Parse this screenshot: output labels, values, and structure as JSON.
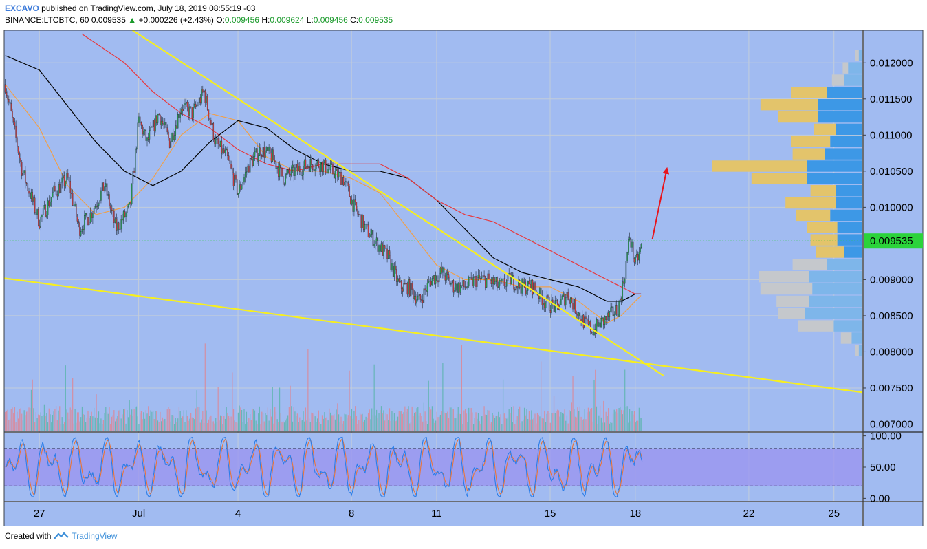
{
  "header": {
    "author": "EXCAVO",
    "published_text": "published on TradingView.com, July 18, 2019 08:55:19 -03",
    "symbol": "BINANCE:LTCBTC, 60",
    "last": "0.009535",
    "change_arrow": "▲",
    "change": "+0.000226 (+2.43%)",
    "o_label": "O:",
    "o_value": "0.009456",
    "h_label": "H:",
    "h_value": "0.009624",
    "l_label": "L:",
    "l_value": "0.009456",
    "c_label": "C:",
    "c_value": "0.009535"
  },
  "footer": {
    "created_with": "Created with",
    "brand": "TradingView"
  },
  "colors": {
    "pane_bg": "#a1bbf1",
    "grid": "#c3cdda",
    "up_candle": "#26a650",
    "down_candle": "#d93a3a",
    "trendline": "#f7ef1e",
    "ma_fast": "#f0a04a",
    "ma_mid": "#000000",
    "ma_slow": "#e8383d",
    "price_line": "#2bd33a",
    "vp_value_area_up": "#3d98e6",
    "vp_value_area_down": "#e3c46b",
    "vp_outside_up": "#7eb6ea",
    "vp_outside_down": "#c5c8cc",
    "stoch_band": "#9b96f0",
    "stoch_k": "#2a7de8",
    "stoch_d": "#e8753a",
    "arrow": "#e8141b"
  },
  "chart_data": {
    "type": "candlestick",
    "symbol": "BINANCE:LTCBTC",
    "interval": "60",
    "price_axis": {
      "ylim": [
        0.0069,
        0.01245
      ],
      "ticks": [
        "0.012000",
        "0.011500",
        "0.011000",
        "0.010500",
        "0.010000",
        "0.009000",
        "0.008500",
        "0.008000",
        "0.007500",
        "0.007000"
      ],
      "last_price_label": "0.009535",
      "last_price": 0.009535
    },
    "time_axis": {
      "ticks": [
        "27",
        "Jul",
        "4",
        "8",
        "11",
        "15",
        "18",
        "22",
        "25"
      ],
      "tick_days": [
        0,
        3.5,
        7,
        11,
        14,
        18,
        21,
        25,
        28
      ],
      "range_days": [
        -1.24,
        29.0
      ]
    },
    "price_path_days": [
      -1.2,
      -0.6,
      0,
      0.5,
      1.0,
      1.4,
      1.8,
      2.3,
      2.7,
      3.2,
      3.5,
      3.8,
      4.2,
      4.6,
      5.0,
      5.4,
      5.8,
      6.2,
      6.6,
      7.0,
      7.4,
      7.8,
      8.2,
      8.6,
      9.0,
      9.5,
      9.9,
      10.3,
      10.7,
      11.1,
      11.5,
      11.9,
      12.3,
      12.7,
      13.0,
      13.4,
      13.8,
      14.2,
      14.6,
      15.0,
      15.4,
      15.8,
      16.2,
      16.6,
      17.0,
      17.4,
      17.8,
      18.2,
      18.6,
      18.9,
      19.2,
      19.5,
      19.8,
      20.1,
      20.4,
      20.6,
      20.8,
      21.0,
      21.25
    ],
    "price_path": [
      0.0117,
      0.0105,
      0.0098,
      0.0102,
      0.0104,
      0.0097,
      0.0099,
      0.0103,
      0.0097,
      0.01,
      0.0112,
      0.0109,
      0.0113,
      0.0109,
      0.0114,
      0.0113,
      0.0116,
      0.0109,
      0.0107,
      0.0102,
      0.0106,
      0.0108,
      0.0107,
      0.0104,
      0.0105,
      0.0106,
      0.0106,
      0.0105,
      0.0104,
      0.01,
      0.0097,
      0.0095,
      0.0093,
      0.0089,
      0.0089,
      0.0087,
      0.009,
      0.0091,
      0.0089,
      0.0089,
      0.009,
      0.009,
      0.0089,
      0.009,
      0.0089,
      0.0089,
      0.0087,
      0.0086,
      0.0088,
      0.0086,
      0.0084,
      0.0083,
      0.0084,
      0.0085,
      0.0086,
      0.009,
      0.0096,
      0.0092,
      0.0095
    ],
    "moving_averages": [
      {
        "key": "fast",
        "days": [
          -1.2,
          0,
          1,
          2,
          3,
          4,
          5,
          6,
          7,
          8,
          9,
          10,
          11,
          12,
          13,
          14,
          15,
          16,
          17,
          18,
          19,
          20,
          20.5,
          21,
          21.25
        ],
        "values": [
          0.0117,
          0.0111,
          0.0103,
          0.0099,
          0.01,
          0.0104,
          0.011,
          0.0113,
          0.0112,
          0.0107,
          0.0105,
          0.0105,
          0.0104,
          0.0102,
          0.0097,
          0.0092,
          0.009,
          0.009,
          0.0089,
          0.0089,
          0.0087,
          0.0084,
          0.0085,
          0.0087,
          0.0088
        ]
      },
      {
        "key": "mid",
        "days": [
          -1.2,
          0,
          1,
          2,
          3,
          4,
          5,
          6,
          7,
          8,
          9,
          10,
          11,
          12,
          13,
          14,
          15,
          16,
          17,
          18,
          19,
          20,
          20.5,
          21,
          21.25
        ],
        "values": [
          0.0121,
          0.0119,
          0.0114,
          0.0109,
          0.0105,
          0.0103,
          0.0105,
          0.0109,
          0.0112,
          0.0111,
          0.0108,
          0.0106,
          0.0105,
          0.0105,
          0.0104,
          0.0101,
          0.0097,
          0.0093,
          0.0091,
          0.009,
          0.0089,
          0.0087,
          0.0087,
          0.0088,
          0.0088
        ]
      },
      {
        "key": "slow",
        "days": [
          1.5,
          3,
          4,
          5,
          6,
          7,
          8,
          9,
          10,
          11,
          12,
          13,
          14,
          15,
          16,
          17,
          18,
          19,
          20,
          21,
          21.25
        ],
        "values": [
          0.0124,
          0.012,
          0.0116,
          0.0113,
          0.0111,
          0.0108,
          0.0106,
          0.0105,
          0.0106,
          0.0106,
          0.0106,
          0.0104,
          0.0101,
          0.0099,
          0.0098,
          0.0096,
          0.0094,
          0.0092,
          0.009,
          0.0088,
          0.0088
        ]
      }
    ],
    "trendlines": [
      {
        "from_day": 2.5,
        "from_price": 0.01265,
        "to_day": 22.0,
        "to_price": 0.00767
      },
      {
        "from_day": -1.24,
        "from_price": 0.00902,
        "to_day": 29.0,
        "to_price": 0.00744
      }
    ],
    "arrow": {
      "from_day": 21.6,
      "from_price": 0.00956,
      "to_day": 22.1,
      "to_price": 0.01051
    },
    "volume_profile": {
      "price_rows": [
        0.0121,
        0.01193,
        0.01176,
        0.01159,
        0.01142,
        0.01125,
        0.01108,
        0.01091,
        0.01074,
        0.01057,
        0.0104,
        0.01023,
        0.01006,
        0.00989,
        0.00972,
        0.00955,
        0.00938,
        0.00921,
        0.00904,
        0.00887,
        0.0087,
        0.00853,
        0.00836,
        0.00819,
        0.00802
      ],
      "up": [
        2,
        8,
        10,
        20,
        25,
        25,
        15,
        18,
        21,
        31,
        31,
        15,
        15,
        18,
        14,
        14,
        10,
        20,
        30,
        28,
        30,
        32,
        16,
        6,
        2
      ],
      "down": [
        2,
        3,
        7,
        20,
        32,
        22,
        12,
        22,
        18,
        53,
        31,
        14,
        28,
        19,
        17,
        15,
        16,
        19,
        28,
        29,
        18,
        15,
        20,
        6,
        2
      ],
      "in_value_area": [
        false,
        false,
        false,
        true,
        true,
        true,
        true,
        true,
        true,
        true,
        true,
        true,
        true,
        true,
        true,
        true,
        true,
        false,
        false,
        false,
        false,
        false,
        false,
        false,
        false
      ]
    },
    "volume": {
      "max_relative": 1.0
    },
    "stochastic": {
      "ticks": [
        "100.00",
        "50.00",
        "0.00"
      ],
      "ylim": [
        -4,
        104
      ],
      "upper_band": 80,
      "lower_band": 20
    }
  }
}
